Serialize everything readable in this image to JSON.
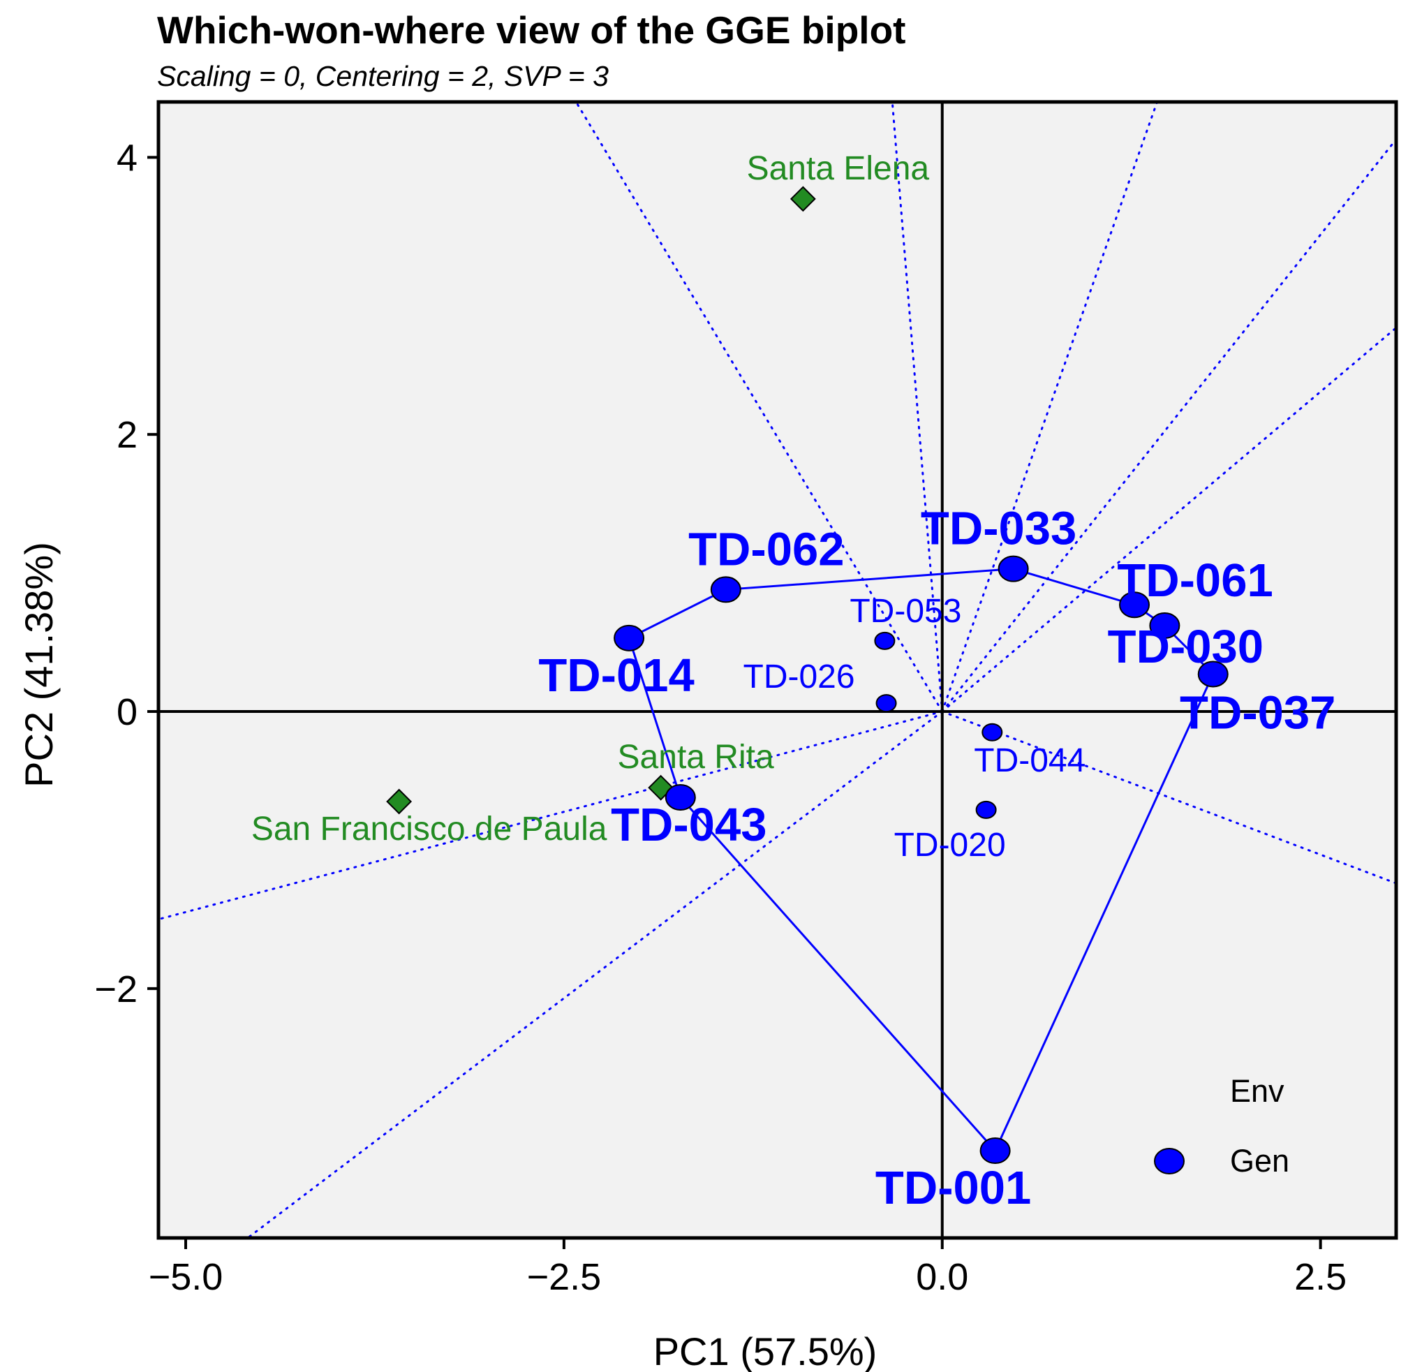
{
  "chart_data": {
    "type": "scatter",
    "title": "Which-won-where view of the GGE biplot",
    "subtitle": "Scaling = 0, Centering = 2, SVP = 3",
    "xlabel": "PC1 (57.5%)",
    "ylabel": "PC2 (41.38%)",
    "xlim": [
      -5.18,
      3.0
    ],
    "ylim": [
      -3.8,
      4.4
    ],
    "xticks": [
      -5.0,
      -2.5,
      0.0,
      2.5
    ],
    "xtick_labels": [
      "−5.0",
      "−2.5",
      "0.0",
      "2.5"
    ],
    "yticks": [
      -2,
      0,
      2,
      4
    ],
    "ytick_labels": [
      "−2",
      "0",
      "2",
      "4"
    ],
    "grid": false,
    "colors": {
      "genotype": "#0000ff",
      "environment": "#228b22",
      "panel": "#f2f2f2"
    },
    "environments": [
      {
        "name": "Santa Elena",
        "x": -0.92,
        "y": 3.7
      },
      {
        "name": "Santa Rita",
        "x": -1.86,
        "y": -0.55
      },
      {
        "name": "San Francisco de Paula",
        "x": -3.59,
        "y": -0.65
      }
    ],
    "genotypes": [
      {
        "name": "TD-001",
        "x": 0.35,
        "y": -3.17,
        "vertex": true
      },
      {
        "name": "TD-043",
        "x": -1.73,
        "y": -0.62,
        "vertex": true
      },
      {
        "name": "TD-014",
        "x": -2.07,
        "y": 0.53,
        "vertex": true
      },
      {
        "name": "TD-062",
        "x": -1.43,
        "y": 0.88,
        "vertex": true
      },
      {
        "name": "TD-033",
        "x": 0.47,
        "y": 1.03,
        "vertex": true
      },
      {
        "name": "TD-061",
        "x": 1.27,
        "y": 0.77,
        "vertex": true
      },
      {
        "name": "TD-030",
        "x": 1.47,
        "y": 0.62,
        "vertex": true
      },
      {
        "name": "TD-037",
        "x": 1.79,
        "y": 0.27,
        "vertex": true
      },
      {
        "name": "TD-053",
        "x": -0.38,
        "y": 0.51,
        "vertex": false
      },
      {
        "name": "TD-026",
        "x": -0.37,
        "y": 0.06,
        "vertex": false
      },
      {
        "name": "TD-044",
        "x": 0.33,
        "y": -0.15,
        "vertex": false
      },
      {
        "name": "TD-020",
        "x": 0.29,
        "y": -0.71,
        "vertex": false
      }
    ],
    "polygon_order": [
      "TD-001",
      "TD-043",
      "TD-014",
      "TD-062",
      "TD-033",
      "TD-061",
      "TD-030",
      "TD-037"
    ],
    "sector_rays": [
      {
        "from": [
          0,
          0
        ],
        "to": [
          -2.42,
          4.4
        ]
      },
      {
        "from": [
          0,
          0
        ],
        "to": [
          -0.33,
          4.4
        ]
      },
      {
        "from": [
          0,
          0
        ],
        "to": [
          1.42,
          4.4
        ]
      },
      {
        "from": [
          0,
          0
        ],
        "to": [
          3.0,
          4.13
        ]
      },
      {
        "from": [
          0,
          0
        ],
        "to": [
          3.0,
          2.77
        ]
      },
      {
        "from": [
          0,
          0
        ],
        "to": [
          3.0,
          -1.24
        ]
      },
      {
        "from": [
          0,
          0
        ],
        "to": [
          -5.18,
          -1.5
        ]
      },
      {
        "from": [
          0,
          0
        ],
        "to": [
          -4.59,
          -3.8
        ]
      }
    ],
    "legend": {
      "position": "bottom-right",
      "entries": [
        {
          "label": "Env",
          "marker": "none"
        },
        {
          "label": "Gen",
          "marker": "circle"
        }
      ]
    }
  }
}
